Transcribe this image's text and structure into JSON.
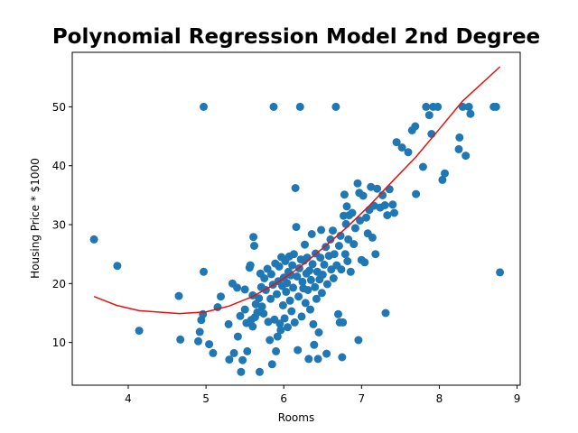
{
  "chart_data": {
    "type": "scatter",
    "title": "Polynomial Regression Model 2nd Degree",
    "xlabel": "Rooms",
    "ylabel": "Housing Price * $1000",
    "xlim": [
      3.28,
      9.04
    ],
    "ylim": [
      2.75,
      59.25
    ],
    "xticks": [
      4,
      5,
      6,
      7,
      8,
      9
    ],
    "yticks": [
      10,
      20,
      30,
      40,
      50
    ],
    "grid": false,
    "legend": "none",
    "colors": {
      "points": "#1f77b4",
      "fit": "#e8100f"
    },
    "series": [
      {
        "type": "scatter",
        "points": [
          [
            3.56,
            27.5
          ],
          [
            3.86,
            23.0
          ],
          [
            4.14,
            12.0
          ],
          [
            4.65,
            17.9
          ],
          [
            4.67,
            10.5
          ],
          [
            4.9,
            10.2
          ],
          [
            4.92,
            11.8
          ],
          [
            4.94,
            13.8
          ],
          [
            4.96,
            14.8
          ],
          [
            4.97,
            50.0
          ],
          [
            4.97,
            22.0
          ],
          [
            5.04,
            9.7
          ],
          [
            5.09,
            8.2
          ],
          [
            5.15,
            16.0
          ],
          [
            5.19,
            17.8
          ],
          [
            5.29,
            13.1
          ],
          [
            5.3,
            7.1
          ],
          [
            5.34,
            20.0
          ],
          [
            5.36,
            8.2
          ],
          [
            5.4,
            19.3
          ],
          [
            5.41,
            11.0
          ],
          [
            5.44,
            14.5
          ],
          [
            5.45,
            5.0
          ],
          [
            5.47,
            7.0
          ],
          [
            5.5,
            15.6
          ],
          [
            5.5,
            19.0
          ],
          [
            5.52,
            13.3
          ],
          [
            5.53,
            8.5
          ],
          [
            5.56,
            22.7
          ],
          [
            5.57,
            23.1
          ],
          [
            5.58,
            13.8
          ],
          [
            5.6,
            12.7
          ],
          [
            5.6,
            18.0
          ],
          [
            5.61,
            27.9
          ],
          [
            5.62,
            26.4
          ],
          [
            5.63,
            14.3
          ],
          [
            5.64,
            16.5
          ],
          [
            5.66,
            15.1
          ],
          [
            5.68,
            17.5
          ],
          [
            5.69,
            5.0
          ],
          [
            5.7,
            21.7
          ],
          [
            5.71,
            19.4
          ],
          [
            5.72,
            16.1
          ],
          [
            5.74,
            14.9
          ],
          [
            5.75,
            20.9
          ],
          [
            5.77,
            18.9
          ],
          [
            5.79,
            22.5
          ],
          [
            5.8,
            13.5
          ],
          [
            5.82,
            10.4
          ],
          [
            5.83,
            17.4
          ],
          [
            5.84,
            21.6
          ],
          [
            5.85,
            6.3
          ],
          [
            5.86,
            19.8
          ],
          [
            5.87,
            50.0
          ],
          [
            5.88,
            13.9
          ],
          [
            5.89,
            23.4
          ],
          [
            5.9,
            8.5
          ],
          [
            5.91,
            18.2
          ],
          [
            5.92,
            11.0
          ],
          [
            5.93,
            20.4
          ],
          [
            5.94,
            22.9
          ],
          [
            5.95,
            13.2
          ],
          [
            5.96,
            12.1
          ],
          [
            5.97,
            24.5
          ],
          [
            5.98,
            19.6
          ],
          [
            5.99,
            16.3
          ],
          [
            6.0,
            21.0
          ],
          [
            6.01,
            14.1
          ],
          [
            6.02,
            23.8
          ],
          [
            6.03,
            18.6
          ],
          [
            6.04,
            20.1
          ],
          [
            6.05,
            12.6
          ],
          [
            6.06,
            22.0
          ],
          [
            6.07,
            24.6
          ],
          [
            6.08,
            17.1
          ],
          [
            6.09,
            21.4
          ],
          [
            6.1,
            15.3
          ],
          [
            6.11,
            23.1
          ],
          [
            6.12,
            19.3
          ],
          [
            6.13,
            25.0
          ],
          [
            6.14,
            13.4
          ],
          [
            6.15,
            36.2
          ],
          [
            6.16,
            29.6
          ],
          [
            6.17,
            21.2
          ],
          [
            6.18,
            8.7
          ],
          [
            6.19,
            17.8
          ],
          [
            6.2,
            22.6
          ],
          [
            6.21,
            50.0
          ],
          [
            6.22,
            24.1
          ],
          [
            6.23,
            14.4
          ],
          [
            6.24,
            20.3
          ],
          [
            6.25,
            19.2
          ],
          [
            6.26,
            23.9
          ],
          [
            6.27,
            26.6
          ],
          [
            6.28,
            16.7
          ],
          [
            6.29,
            21.7
          ],
          [
            6.3,
            24.4
          ],
          [
            6.31,
            18.9
          ],
          [
            6.32,
            7.2
          ],
          [
            6.33,
            22.2
          ],
          [
            6.34,
            15.6
          ],
          [
            6.35,
            20.6
          ],
          [
            6.36,
            28.4
          ],
          [
            6.37,
            23.3
          ],
          [
            6.38,
            13.1
          ],
          [
            6.39,
            9.6
          ],
          [
            6.4,
            19.4
          ],
          [
            6.41,
            25.1
          ],
          [
            6.42,
            17.4
          ],
          [
            6.43,
            22.0
          ],
          [
            6.44,
            7.2
          ],
          [
            6.45,
            11.7
          ],
          [
            6.46,
            20.7
          ],
          [
            6.47,
            24.4
          ],
          [
            6.48,
            29.1
          ],
          [
            6.49,
            18.4
          ],
          [
            6.5,
            21.5
          ],
          [
            6.52,
            23.2
          ],
          [
            6.54,
            26.2
          ],
          [
            6.55,
            8.1
          ],
          [
            6.56,
            19.9
          ],
          [
            6.58,
            24.7
          ],
          [
            6.6,
            27.5
          ],
          [
            6.61,
            22.4
          ],
          [
            6.63,
            29.0
          ],
          [
            6.64,
            20.9
          ],
          [
            6.65,
            25.0
          ],
          [
            6.67,
            50.0
          ],
          [
            6.68,
            23.1
          ],
          [
            6.7,
            14.8
          ],
          [
            6.71,
            26.4
          ],
          [
            6.72,
            13.4
          ],
          [
            6.73,
            28.1
          ],
          [
            6.74,
            22.4
          ],
          [
            6.75,
            7.5
          ],
          [
            6.76,
            13.4
          ],
          [
            6.77,
            31.5
          ],
          [
            6.78,
            35.1
          ],
          [
            6.79,
            25.0
          ],
          [
            6.8,
            30.1
          ],
          [
            6.81,
            33.1
          ],
          [
            6.82,
            23.8
          ],
          [
            6.83,
            27.5
          ],
          [
            6.84,
            31.6
          ],
          [
            6.86,
            22.0
          ],
          [
            6.88,
            32.0
          ],
          [
            6.9,
            26.7
          ],
          [
            6.92,
            29.4
          ],
          [
            6.95,
            37.0
          ],
          [
            6.96,
            10.4
          ],
          [
            6.97,
            35.4
          ],
          [
            6.98,
            30.7
          ],
          [
            7.0,
            24.0
          ],
          [
            7.02,
            34.9
          ],
          [
            7.04,
            23.6
          ],
          [
            7.06,
            31.2
          ],
          [
            7.08,
            28.5
          ],
          [
            7.1,
            32.5
          ],
          [
            7.12,
            36.4
          ],
          [
            7.14,
            27.8
          ],
          [
            7.16,
            33.2
          ],
          [
            7.18,
            25.0
          ],
          [
            7.2,
            36.1
          ],
          [
            7.24,
            32.9
          ],
          [
            7.27,
            35.0
          ],
          [
            7.3,
            33.3
          ],
          [
            7.31,
            15.0
          ],
          [
            7.33,
            31.6
          ],
          [
            7.36,
            36.0
          ],
          [
            7.4,
            33.4
          ],
          [
            7.42,
            32.0
          ],
          [
            7.45,
            44.0
          ],
          [
            7.52,
            43.1
          ],
          [
            7.6,
            42.3
          ],
          [
            7.65,
            46.0
          ],
          [
            7.69,
            46.7
          ],
          [
            7.7,
            35.2
          ],
          [
            7.79,
            39.8
          ],
          [
            7.83,
            50.0
          ],
          [
            7.87,
            48.6
          ],
          [
            7.9,
            45.4
          ],
          [
            7.92,
            50.0
          ],
          [
            7.98,
            50.0
          ],
          [
            8.04,
            37.6
          ],
          [
            8.07,
            38.7
          ],
          [
            8.25,
            42.8
          ],
          [
            8.26,
            44.8
          ],
          [
            8.3,
            50.0
          ],
          [
            8.34,
            41.7
          ],
          [
            8.38,
            50.0
          ],
          [
            8.4,
            48.8
          ],
          [
            8.7,
            50.0
          ],
          [
            8.73,
            50.0
          ],
          [
            8.78,
            21.9
          ]
        ]
      },
      {
        "type": "line",
        "x": [
          3.56,
          3.85,
          4.14,
          4.66,
          5.0,
          5.3,
          5.6,
          5.9,
          6.2,
          6.5,
          6.8,
          7.1,
          7.4,
          7.7,
          8.0,
          8.3,
          8.5,
          8.78
        ],
        "y": [
          17.8,
          16.3,
          15.4,
          14.9,
          15.2,
          16.2,
          17.8,
          20.0,
          22.7,
          26.0,
          29.4,
          33.2,
          37.4,
          41.5,
          46.2,
          51.0,
          53.4,
          56.8
        ]
      }
    ]
  }
}
